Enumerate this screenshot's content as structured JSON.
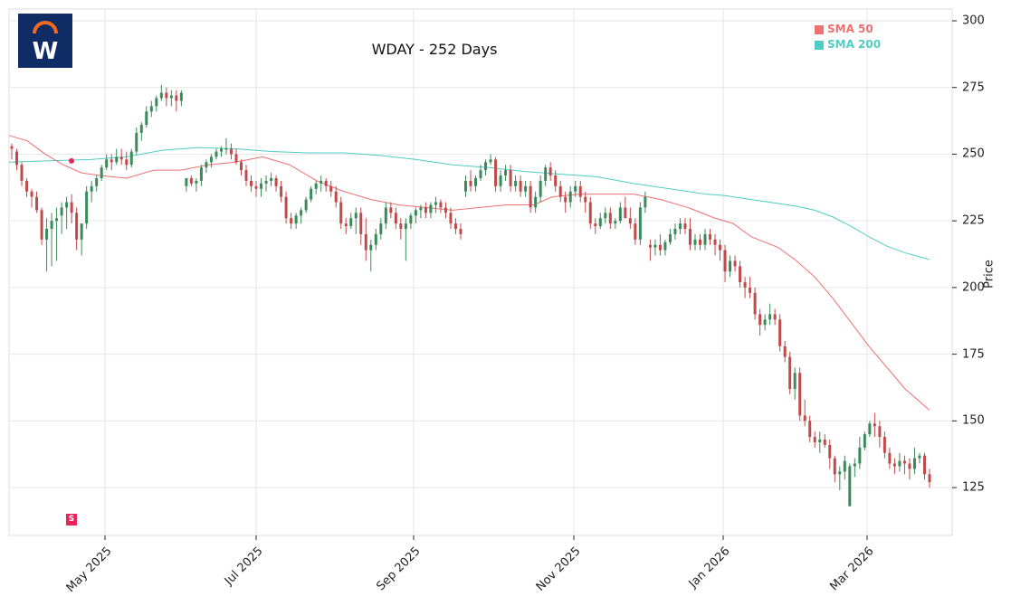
{
  "title": "WDAY - 252 Days",
  "logo": {
    "name": "workday-logo",
    "bg": "#0f2c64",
    "arc": "#f4691f",
    "letter": "W"
  },
  "legend": [
    {
      "label": "SMA 50",
      "color": "#f07070"
    },
    {
      "label": "SMA 200",
      "color": "#4ecdc4"
    }
  ],
  "signal_marker": {
    "label": "S",
    "color": "#e8245a"
  },
  "colors": {
    "up": "#3a8a5a",
    "down": "#c04a4a",
    "grid": "#e6e6e6",
    "axis": "#dddddd"
  },
  "chart_data": {
    "type": "candlestick",
    "title": "WDAY - 252 Days",
    "xlabel": "",
    "ylabel": "Price",
    "ylim": [
      107,
      304
    ],
    "yticks": [
      125,
      150,
      175,
      200,
      225,
      250,
      275,
      300
    ],
    "xticks": [
      {
        "label": "May 2025",
        "x": 116
      },
      {
        "label": "Jul 2025",
        "x": 283
      },
      {
        "label": "Sep 2025",
        "x": 457
      },
      {
        "label": "Nov 2025",
        "x": 634
      },
      {
        "label": "Jan 2026",
        "x": 799
      },
      {
        "label": "Mar 2026",
        "x": 958
      }
    ],
    "grid": true,
    "legend_position": "upper right",
    "sma50_points": [
      [
        10,
        257
      ],
      [
        30,
        255
      ],
      [
        50,
        250
      ],
      [
        70,
        246
      ],
      [
        90,
        243
      ],
      [
        110,
        242
      ],
      [
        140,
        241
      ],
      [
        170,
        244
      ],
      [
        200,
        244
      ],
      [
        230,
        246
      ],
      [
        260,
        247
      ],
      [
        290,
        249
      ],
      [
        320,
        246
      ],
      [
        350,
        240
      ],
      [
        380,
        236
      ],
      [
        410,
        233
      ],
      [
        440,
        231
      ],
      [
        470,
        230
      ],
      [
        500,
        229
      ],
      [
        530,
        230
      ],
      [
        560,
        231
      ],
      [
        590,
        231
      ],
      [
        610,
        234
      ],
      [
        640,
        235
      ],
      [
        670,
        235
      ],
      [
        700,
        235
      ],
      [
        730,
        233
      ],
      [
        760,
        230
      ],
      [
        790,
        226
      ],
      [
        810,
        224
      ],
      [
        830,
        219
      ],
      [
        860,
        215
      ],
      [
        880,
        210
      ],
      [
        900,
        204
      ],
      [
        920,
        196
      ],
      [
        940,
        187
      ],
      [
        960,
        178
      ],
      [
        980,
        170
      ],
      [
        1000,
        162
      ],
      [
        1027,
        154
      ]
    ],
    "sma200_points": [
      [
        10,
        247
      ],
      [
        50,
        247.5
      ],
      [
        100,
        248
      ],
      [
        140,
        249
      ],
      [
        180,
        251.5
      ],
      [
        220,
        252.5
      ],
      [
        260,
        252
      ],
      [
        300,
        251
      ],
      [
        340,
        250.5
      ],
      [
        380,
        250.5
      ],
      [
        420,
        249.5
      ],
      [
        460,
        248
      ],
      [
        500,
        246
      ],
      [
        540,
        245
      ],
      [
        580,
        243.5
      ],
      [
        620,
        242.5
      ],
      [
        660,
        241.5
      ],
      [
        700,
        239
      ],
      [
        740,
        237
      ],
      [
        780,
        235
      ],
      [
        800,
        234.5
      ],
      [
        830,
        233
      ],
      [
        860,
        231.5
      ],
      [
        880,
        230.5
      ],
      [
        900,
        229
      ],
      [
        920,
        226.5
      ],
      [
        940,
        223
      ],
      [
        960,
        219
      ],
      [
        980,
        215.5
      ],
      [
        1000,
        213
      ],
      [
        1027,
        210.5
      ]
    ],
    "signal_point": {
      "x": 79,
      "price": 247.5
    },
    "ohlc_series_anchor": "candle_i drawn at x = 13 + i*4.04",
    "ohlc": [
      [
        253,
        254,
        248,
        252
      ],
      [
        251,
        252,
        244,
        246
      ],
      [
        246,
        247,
        238,
        240
      ],
      [
        240,
        241,
        234,
        236
      ],
      [
        236,
        237,
        230,
        234
      ],
      [
        234,
        236,
        228,
        229
      ],
      [
        229,
        230,
        216,
        218
      ],
      [
        218,
        226,
        206,
        222
      ],
      [
        222,
        228,
        208,
        225
      ],
      [
        225,
        230,
        210,
        226
      ],
      [
        227,
        232,
        220,
        230
      ],
      [
        230,
        234,
        222,
        232
      ],
      [
        232,
        235,
        224,
        228
      ],
      [
        228,
        230,
        214,
        218
      ],
      [
        218,
        224,
        212,
        224
      ],
      [
        224,
        238,
        222,
        236
      ],
      [
        236,
        240,
        232,
        238
      ],
      [
        238,
        242,
        236,
        241
      ],
      [
        241,
        246,
        240,
        245
      ],
      [
        245,
        250,
        244,
        248
      ],
      [
        248,
        250,
        244,
        247
      ],
      [
        247,
        252,
        246,
        249
      ],
      [
        249,
        252,
        246,
        248
      ],
      [
        248,
        251,
        244,
        246
      ],
      [
        246,
        252,
        245,
        251
      ],
      [
        251,
        260,
        250,
        258
      ],
      [
        258,
        262,
        255,
        261
      ],
      [
        261,
        268,
        260,
        266
      ],
      [
        266,
        270,
        264,
        268
      ],
      [
        268,
        272,
        266,
        271
      ],
      [
        271,
        276,
        270,
        273
      ],
      [
        273,
        275,
        268,
        271
      ],
      [
        271,
        274,
        268,
        272
      ],
      [
        272,
        274,
        266,
        270
      ],
      [
        270,
        274,
        268,
        273
      ],
      [
        238,
        240,
        236,
        241
      ],
      [
        241,
        242,
        238,
        239
      ],
      [
        239,
        241,
        236,
        240
      ],
      [
        240,
        246,
        238,
        245
      ],
      [
        245,
        248,
        243,
        247
      ],
      [
        247,
        250,
        245,
        249
      ],
      [
        249,
        252,
        248,
        251
      ],
      [
        251,
        253,
        249,
        252
      ],
      [
        252,
        256,
        250,
        252
      ],
      [
        252,
        254,
        248,
        250
      ],
      [
        250,
        252,
        246,
        247
      ],
      [
        247,
        248,
        242,
        244
      ],
      [
        244,
        246,
        238,
        240
      ],
      [
        240,
        242,
        236,
        238
      ],
      [
        238,
        240,
        234,
        237
      ],
      [
        237,
        241,
        234,
        239
      ],
      [
        239,
        242,
        236,
        240
      ],
      [
        240,
        243,
        238,
        241
      ],
      [
        241,
        242,
        236,
        238
      ],
      [
        238,
        240,
        232,
        234
      ],
      [
        234,
        236,
        224,
        226
      ],
      [
        226,
        228,
        222,
        224
      ],
      [
        224,
        228,
        222,
        227
      ],
      [
        227,
        230,
        224,
        229
      ],
      [
        229,
        234,
        228,
        233
      ],
      [
        233,
        238,
        232,
        237
      ],
      [
        237,
        240,
        235,
        239
      ],
      [
        239,
        242,
        236,
        240
      ],
      [
        240,
        241,
        236,
        238
      ],
      [
        238,
        240,
        234,
        236
      ],
      [
        236,
        238,
        230,
        232
      ],
      [
        232,
        234,
        222,
        224
      ],
      [
        224,
        226,
        220,
        223
      ],
      [
        223,
        228,
        222,
        226
      ],
      [
        226,
        230,
        220,
        228
      ],
      [
        228,
        230,
        216,
        220
      ],
      [
        220,
        226,
        210,
        214
      ],
      [
        214,
        218,
        206,
        216
      ],
      [
        216,
        222,
        214,
        220
      ],
      [
        220,
        226,
        218,
        224
      ],
      [
        224,
        232,
        222,
        230
      ],
      [
        230,
        232,
        226,
        228
      ],
      [
        228,
        230,
        222,
        224
      ],
      [
        224,
        226,
        218,
        222
      ],
      [
        222,
        226,
        210,
        224
      ],
      [
        224,
        228,
        222,
        227
      ],
      [
        227,
        230,
        224,
        229
      ],
      [
        229,
        231,
        226,
        230
      ],
      [
        230,
        232,
        226,
        228
      ],
      [
        228,
        232,
        226,
        231
      ],
      [
        231,
        234,
        228,
        232
      ],
      [
        232,
        233,
        228,
        230
      ],
      [
        230,
        232,
        226,
        228
      ],
      [
        228,
        230,
        222,
        224
      ],
      [
        224,
        226,
        220,
        222
      ],
      [
        222,
        224,
        218,
        220
      ],
      [
        236,
        242,
        234,
        240
      ],
      [
        240,
        244,
        236,
        238
      ],
      [
        238,
        242,
        236,
        241
      ],
      [
        241,
        246,
        240,
        244
      ],
      [
        244,
        248,
        242,
        247
      ],
      [
        247,
        250,
        246,
        248
      ],
      [
        248,
        249,
        236,
        238
      ],
      [
        238,
        244,
        236,
        242
      ],
      [
        242,
        246,
        240,
        244
      ],
      [
        244,
        246,
        236,
        238
      ],
      [
        238,
        242,
        236,
        240
      ],
      [
        240,
        242,
        234,
        236
      ],
      [
        236,
        240,
        234,
        238
      ],
      [
        238,
        240,
        228,
        230
      ],
      [
        230,
        236,
        228,
        234
      ],
      [
        234,
        242,
        232,
        240
      ],
      [
        240,
        246,
        238,
        245
      ],
      [
        245,
        247,
        240,
        242
      ],
      [
        242,
        244,
        236,
        238
      ],
      [
        238,
        240,
        232,
        234
      ],
      [
        234,
        236,
        228,
        232
      ],
      [
        232,
        238,
        230,
        236
      ],
      [
        236,
        240,
        234,
        238
      ],
      [
        238,
        240,
        232,
        234
      ],
      [
        234,
        236,
        228,
        232
      ],
      [
        232,
        234,
        222,
        224
      ],
      [
        224,
        226,
        220,
        223
      ],
      [
        223,
        228,
        222,
        226
      ],
      [
        226,
        230,
        224,
        228
      ],
      [
        228,
        230,
        222,
        224
      ],
      [
        224,
        226,
        222,
        225
      ],
      [
        225,
        232,
        224,
        230
      ],
      [
        230,
        234,
        226,
        226
      ],
      [
        226,
        230,
        222,
        224
      ],
      [
        224,
        226,
        216,
        218
      ],
      [
        218,
        232,
        216,
        230
      ],
      [
        230,
        236,
        228,
        234
      ],
      [
        216,
        218,
        210,
        215
      ],
      [
        215,
        218,
        212,
        216
      ],
      [
        216,
        220,
        212,
        214
      ],
      [
        214,
        218,
        212,
        217
      ],
      [
        217,
        222,
        216,
        220
      ],
      [
        220,
        224,
        218,
        222
      ],
      [
        222,
        226,
        220,
        224
      ],
      [
        224,
        226,
        220,
        222
      ],
      [
        222,
        226,
        214,
        216
      ],
      [
        216,
        220,
        214,
        218
      ],
      [
        218,
        220,
        214,
        216
      ],
      [
        216,
        222,
        214,
        220
      ],
      [
        220,
        222,
        216,
        218
      ],
      [
        218,
        220,
        212,
        216
      ],
      [
        216,
        218,
        210,
        214
      ],
      [
        214,
        216,
        202,
        206
      ],
      [
        206,
        212,
        204,
        210
      ],
      [
        210,
        212,
        206,
        208
      ],
      [
        208,
        210,
        200,
        202
      ],
      [
        202,
        204,
        196,
        200
      ],
      [
        200,
        204,
        196,
        198
      ],
      [
        198,
        200,
        188,
        190
      ],
      [
        190,
        192,
        182,
        186
      ],
      [
        186,
        190,
        184,
        188
      ],
      [
        188,
        194,
        186,
        190
      ],
      [
        190,
        192,
        186,
        188
      ],
      [
        188,
        190,
        176,
        178
      ],
      [
        178,
        180,
        172,
        174
      ],
      [
        174,
        176,
        160,
        162
      ],
      [
        162,
        170,
        158,
        168
      ],
      [
        168,
        170,
        150,
        152
      ],
      [
        152,
        158,
        148,
        150
      ],
      [
        150,
        152,
        142,
        144
      ],
      [
        144,
        146,
        140,
        142
      ],
      [
        142,
        146,
        138,
        143
      ],
      [
        143,
        145,
        140,
        141
      ],
      [
        141,
        143,
        132,
        136
      ],
      [
        136,
        137,
        127,
        130
      ],
      [
        130,
        133,
        124,
        131
      ],
      [
        131,
        137,
        128,
        135
      ],
      [
        118,
        134,
        118,
        133
      ],
      [
        133,
        136,
        129,
        134
      ],
      [
        134,
        144,
        132,
        140
      ],
      [
        140,
        146,
        139,
        145
      ],
      [
        145,
        150,
        144,
        149
      ],
      [
        149,
        153,
        144,
        148
      ],
      [
        148,
        150,
        140,
        144
      ],
      [
        144,
        146,
        136,
        138
      ],
      [
        138,
        140,
        132,
        134
      ],
      [
        134,
        136,
        130,
        133
      ],
      [
        133,
        138,
        131,
        135
      ],
      [
        135,
        137,
        130,
        134
      ],
      [
        134,
        136,
        128,
        132
      ],
      [
        132,
        140,
        130,
        136
      ],
      [
        136,
        138,
        134,
        137
      ],
      [
        137,
        138,
        128,
        130
      ],
      [
        130,
        132,
        125,
        127
      ]
    ]
  }
}
